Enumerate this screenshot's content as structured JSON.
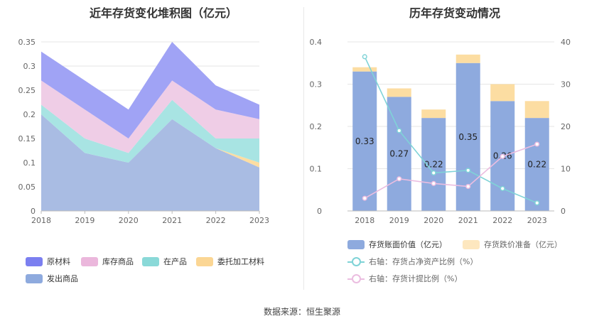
{
  "source": "数据来源：恒生聚源",
  "chart_data": [
    {
      "type": "area",
      "stacked": true,
      "title": "近年存货变化堆积图（亿元）",
      "categories": [
        "2018",
        "2019",
        "2020",
        "2021",
        "2022",
        "2023"
      ],
      "ylim": [
        0,
        0.35
      ],
      "yticks": [
        "0",
        "0.05",
        "0.1",
        "0.15",
        "0.2",
        "0.25",
        "0.3",
        "0.35"
      ],
      "grid": true,
      "legend_position": "bottom",
      "series": [
        {
          "name": "发出商品",
          "color": "#a9bce3",
          "values": [
            0.2,
            0.12,
            0.1,
            0.19,
            0.13,
            0.09
          ]
        },
        {
          "name": "委托加工材料",
          "color": "#fcdda2",
          "values": [
            0.0,
            0.0,
            0.0,
            0.0,
            0.0,
            0.01
          ]
        },
        {
          "name": "在产品",
          "color": "#a8e4e3",
          "values": [
            0.02,
            0.03,
            0.02,
            0.04,
            0.02,
            0.05
          ]
        },
        {
          "name": "库存商品",
          "color": "#efcde6",
          "values": [
            0.05,
            0.06,
            0.03,
            0.04,
            0.06,
            0.04
          ]
        },
        {
          "name": "原材料",
          "color": "#a0a3f5",
          "values": [
            0.06,
            0.06,
            0.06,
            0.08,
            0.05,
            0.03
          ]
        }
      ],
      "legend_order": [
        {
          "name": "原材料",
          "color": "#7b7ff0"
        },
        {
          "name": "库存商品",
          "color": "#ebb7dc"
        },
        {
          "name": "在产品",
          "color": "#8ad9d8"
        },
        {
          "name": "委托加工材料",
          "color": "#fbd694"
        },
        {
          "name": "发出商品",
          "color": "#8eaade"
        }
      ]
    },
    {
      "type": "bar",
      "stacked": true,
      "title": "历年存货变动情况",
      "categories": [
        "2018",
        "2019",
        "2020",
        "2021",
        "2022",
        "2023"
      ],
      "ylim": [
        0,
        0.4
      ],
      "yticks": [
        "0",
        "0.1",
        "0.2",
        "0.3",
        "0.4"
      ],
      "y2lim": [
        0,
        40
      ],
      "y2ticks": [
        "0",
        "10",
        "20",
        "30",
        "40"
      ],
      "grid": true,
      "legend_position": "bottom",
      "bar_series": [
        {
          "name": "存货账面价值（亿元）",
          "color": "#8eaade",
          "values": [
            0.33,
            0.27,
            0.22,
            0.35,
            0.26,
            0.22
          ],
          "labels": [
            "0.33",
            "0.27",
            "0.22",
            "0.35",
            "0.26",
            "0.22"
          ]
        },
        {
          "name": "存货跌价准备（亿元）",
          "color": "#fcdda2",
          "values": [
            0.01,
            0.02,
            0.02,
            0.02,
            0.04,
            0.04
          ]
        }
      ],
      "line_series": [
        {
          "name": "右轴：存货占净资产比例（%）",
          "color": "#7fd3d7",
          "axis": "right",
          "values": [
            36.5,
            19.0,
            9.0,
            9.6,
            5.3,
            1.9
          ]
        },
        {
          "name": "右轴：存货计提比例（%）",
          "color": "#ebbde0",
          "axis": "right",
          "values": [
            3.0,
            7.6,
            6.5,
            5.8,
            12.9,
            15.8
          ]
        }
      ]
    }
  ]
}
